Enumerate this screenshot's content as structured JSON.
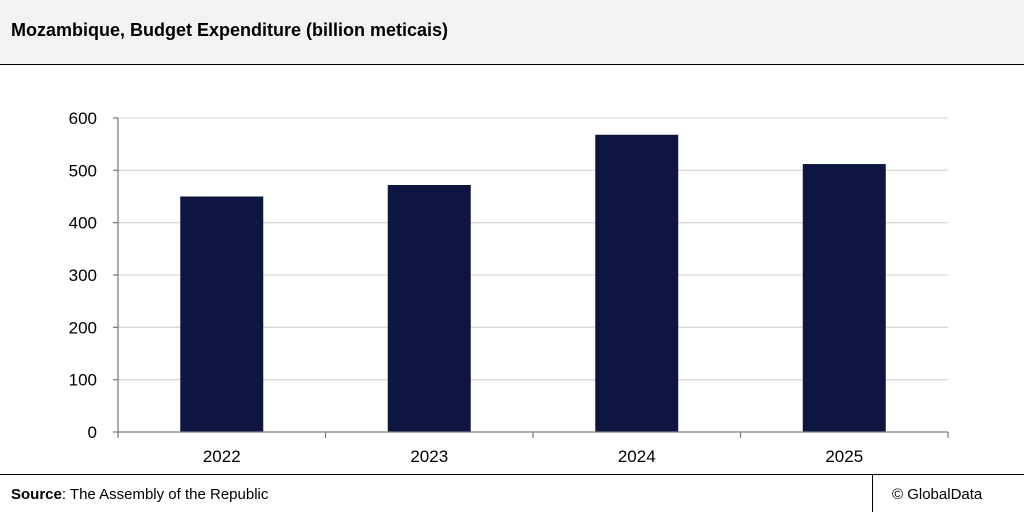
{
  "title": "Mozambique, Budget Expenditure (billion meticais)",
  "footer": {
    "source_label": "Source",
    "source_text": ": The Assembly of the Republic",
    "copyright": "© GlobalData"
  },
  "colors": {
    "bar": "#0d1640",
    "grid": "#d9d9d9",
    "axis": "#7f7f7f"
  },
  "chart_data": {
    "type": "bar",
    "categories": [
      "2022",
      "2023",
      "2024",
      "2025"
    ],
    "values": [
      450,
      472,
      568,
      512
    ],
    "title": "Mozambique, Budget Expenditure (billion meticais)",
    "xlabel": "",
    "ylabel": "",
    "ylim": [
      0,
      600
    ],
    "yticks": [
      0,
      100,
      200,
      300,
      400,
      500,
      600
    ],
    "grid": true,
    "legend": "none"
  }
}
